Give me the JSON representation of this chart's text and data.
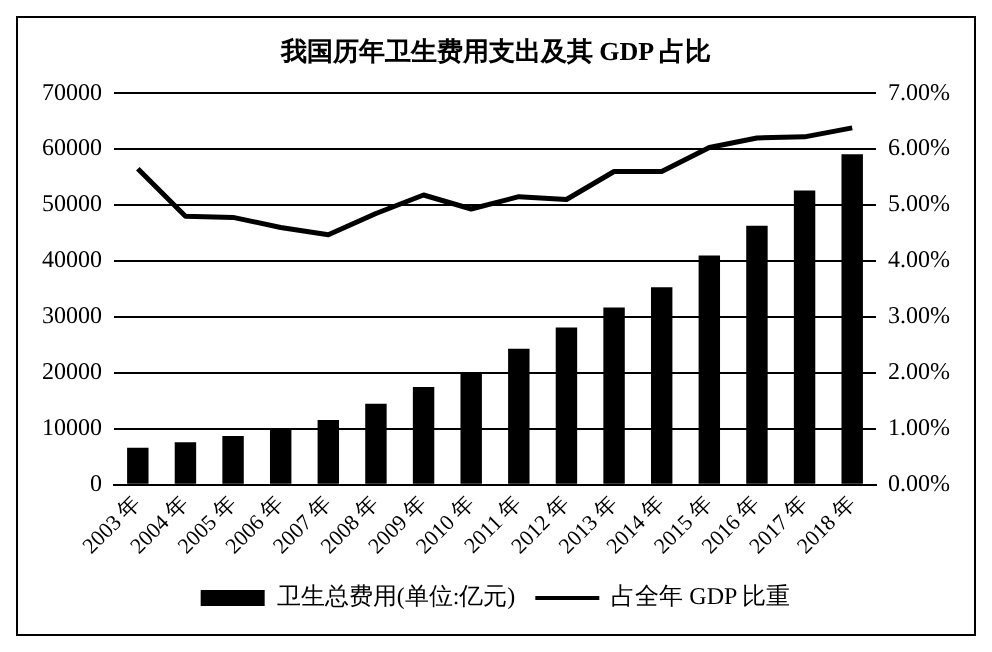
{
  "chart_data": {
    "type": "bar",
    "title": "我国历年卫生费用支出及其 GDP 占比",
    "categories": [
      "2003 年",
      "2004 年",
      "2005 年",
      "2006 年",
      "2007 年",
      "2008 年",
      "2009 年",
      "2010 年",
      "2011 年",
      "2012 年",
      "2013 年",
      "2014 年",
      "2015 年",
      "2016 年",
      "2017 年",
      "2018 年"
    ],
    "series": [
      {
        "name": "卫生总费用(单位:亿元)",
        "color": "#000000",
        "values": [
          6600,
          7600,
          8700,
          9800,
          11600,
          14500,
          17500,
          20000,
          24300,
          28100,
          31700,
          35300,
          41000,
          46300,
          52600,
          59100
        ]
      },
      {
        "name": "占全年 GDP 比重",
        "type": "line",
        "axis": "y2",
        "color": "#000000",
        "values": [
          5.65,
          4.8,
          4.78,
          4.6,
          4.47,
          4.85,
          5.18,
          4.93,
          5.15,
          5.1,
          5.6,
          5.6,
          6.03,
          6.2,
          6.22,
          6.38
        ]
      }
    ],
    "ylim": [
      0,
      70000
    ],
    "yticks": [
      0,
      10000,
      20000,
      30000,
      40000,
      50000,
      60000,
      70000
    ],
    "y2lim": [
      0,
      7
    ],
    "y2ticks": [
      {
        "value": 0,
        "label": "0.00%"
      },
      {
        "value": 1,
        "label": "1.00%"
      },
      {
        "value": 2,
        "label": "2.00%"
      },
      {
        "value": 3,
        "label": "3.00%"
      },
      {
        "value": 4,
        "label": "4.00%"
      },
      {
        "value": 5,
        "label": "5.00%"
      },
      {
        "value": 6,
        "label": "6.00%"
      },
      {
        "value": 7,
        "label": "7.00%"
      }
    ],
    "grid": "y",
    "legend": "bottom",
    "marker": "none",
    "line_style": "solid"
  }
}
